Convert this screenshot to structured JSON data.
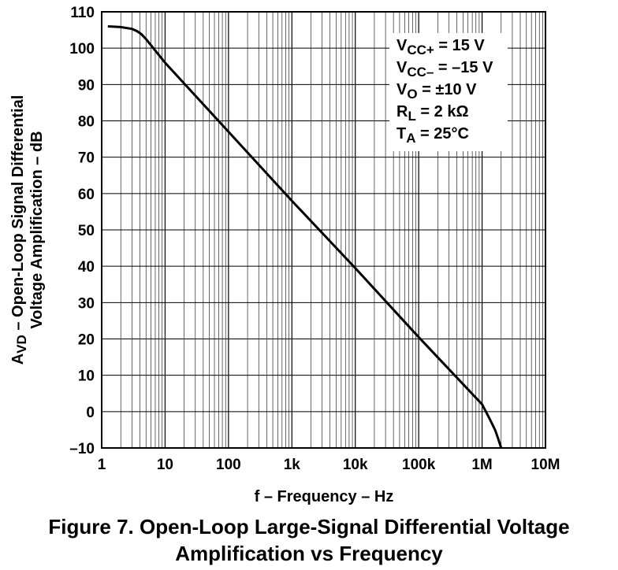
{
  "chart_data": {
    "type": "line",
    "title": "",
    "xlabel": "f – Frequency – Hz",
    "ylabel_line1": "A",
    "ylabel_sub": "VD",
    "ylabel_line1_rest": " – Open-Loop Signal Differential",
    "ylabel_line2": "Voltage Amplification – dB",
    "x_scale": "log",
    "xlim": [
      1,
      10000000
    ],
    "ylim": [
      -10,
      110
    ],
    "grid": true,
    "x_ticks": [
      {
        "value": 1,
        "label": "1"
      },
      {
        "value": 10,
        "label": "10"
      },
      {
        "value": 100,
        "label": "100"
      },
      {
        "value": 1000,
        "label": "1k"
      },
      {
        "value": 10000,
        "label": "10k"
      },
      {
        "value": 100000,
        "label": "100k"
      },
      {
        "value": 1000000,
        "label": "1M"
      },
      {
        "value": 10000000,
        "label": "10M"
      }
    ],
    "y_ticks": [
      {
        "value": 110,
        "label": "110"
      },
      {
        "value": 100,
        "label": "100"
      },
      {
        "value": 90,
        "label": "90"
      },
      {
        "value": 80,
        "label": "80"
      },
      {
        "value": 70,
        "label": "70"
      },
      {
        "value": 60,
        "label": "60"
      },
      {
        "value": 50,
        "label": "50"
      },
      {
        "value": 40,
        "label": "40"
      },
      {
        "value": 30,
        "label": "30"
      },
      {
        "value": 20,
        "label": "20"
      },
      {
        "value": 10,
        "label": "10"
      },
      {
        "value": 0,
        "label": "0"
      },
      {
        "value": -10,
        "label": "–10"
      }
    ],
    "series": [
      {
        "x": [
          1.25,
          2,
          3,
          3.6,
          4.2,
          5,
          10,
          100,
          1000,
          10000,
          100000,
          1000000,
          1300000,
          1600000,
          1800000,
          2000000
        ],
        "y": [
          106,
          105.8,
          105.3,
          104.7,
          103.9,
          102.5,
          96,
          77,
          58,
          39.5,
          20.5,
          2,
          -1.8,
          -5,
          -7.5,
          -10
        ]
      }
    ],
    "conditions": [
      {
        "main": "V",
        "sub": "CC+",
        "rest": " = 15 V"
      },
      {
        "main": "V",
        "sub": "CC–",
        "rest": " = –15 V"
      },
      {
        "main": "V",
        "sub": "O",
        "rest": " = ±10 V"
      },
      {
        "main": "R",
        "sub": "L",
        "rest": " = 2 kΩ"
      },
      {
        "main": "T",
        "sub": "A",
        "rest": " = 25°C"
      }
    ]
  },
  "caption": {
    "line1": "Figure 7. Open-Loop Large-Signal Differential Voltage",
    "line2": "Amplification vs Frequency"
  }
}
